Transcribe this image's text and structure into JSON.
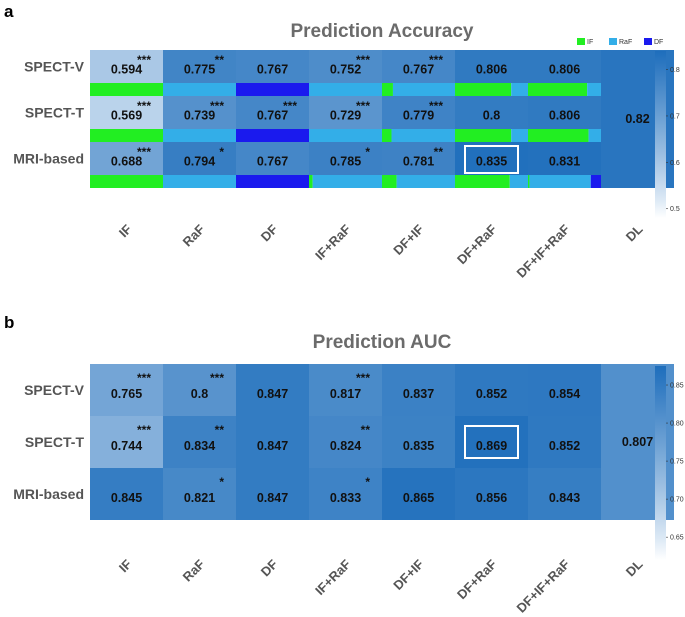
{
  "chart_data": [
    {
      "panel": "a",
      "type": "heatmap",
      "title": "Prediction Accuracy",
      "rows": [
        "SPECT-V",
        "SPECT-T",
        "MRI-based"
      ],
      "columns": [
        "IF",
        "RaF",
        "DF",
        "IF+RaF",
        "DF+IF",
        "DF+RaF",
        "DF+IF+RaF",
        "DL"
      ],
      "values": [
        [
          "0.594",
          "0.775",
          "0.767",
          "0.752",
          "0.767",
          "0.806",
          "0.806",
          "0.82"
        ],
        [
          "0.569",
          "0.739",
          "0.767",
          "0.729",
          "0.779",
          "0.8",
          "0.806",
          "0.82"
        ],
        [
          "0.688",
          "0.794",
          "0.767",
          "0.785",
          "0.781",
          "0.835",
          "0.831",
          "0.82"
        ]
      ],
      "significance": [
        [
          "***",
          "**",
          "",
          "***",
          "***",
          "",
          "",
          ""
        ],
        [
          "***",
          "***",
          "***",
          "***",
          "***",
          "",
          "",
          ""
        ],
        [
          "***",
          "*",
          "",
          "*",
          "**",
          "",
          "",
          ""
        ]
      ],
      "merged_column": "DL",
      "highlight": {
        "row": 2,
        "col": 5
      },
      "colorbar": {
        "min": 0.48,
        "max": 0.84,
        "ticks": [
          "0.5",
          "0.6",
          "0.7",
          "0.8"
        ]
      },
      "feature_legend": [
        {
          "label": "IF",
          "color": "#22ee22"
        },
        {
          "label": "RaF",
          "color": "#33aee8"
        },
        {
          "label": "DF",
          "color": "#1a1aee"
        }
      ],
      "feature_bars": [
        [
          [
            1
          ],
          [
            0,
            1
          ],
          [
            0,
            0,
            1
          ],
          [
            0,
            1
          ],
          [
            0.15,
            0.85
          ],
          [
            0.77,
            0.23
          ],
          [
            0.81,
            0.19
          ]
        ],
        [
          [
            1
          ],
          [
            0,
            1
          ],
          [
            0,
            0,
            1
          ],
          [
            0,
            1
          ],
          [
            0.13,
            0.87
          ],
          [
            0.77,
            0.23
          ],
          [
            0.83,
            0.17
          ]
        ],
        [
          [
            1
          ],
          [
            0,
            1
          ],
          [
            0,
            0,
            1
          ],
          [
            0.05,
            0.95
          ],
          [
            0.2,
            0.8
          ],
          [
            0.75,
            0.25
          ],
          [
            0.02,
            0.84,
            0.14
          ]
        ]
      ]
    },
    {
      "panel": "b",
      "type": "heatmap",
      "title": "Prediction AUC",
      "rows": [
        "SPECT-V",
        "SPECT-T",
        "MRI-based"
      ],
      "columns": [
        "IF",
        "RaF",
        "DF",
        "IF+RaF",
        "DF+IF",
        "DF+RaF",
        "DF+IF+RaF",
        "DL"
      ],
      "values": [
        [
          "0.765",
          "0.8",
          "0.847",
          "0.817",
          "0.837",
          "0.852",
          "0.854",
          "0.807"
        ],
        [
          "0.744",
          "0.834",
          "0.847",
          "0.824",
          "0.835",
          "0.869",
          "0.852",
          "0.807"
        ],
        [
          "0.845",
          "0.821",
          "0.847",
          "0.833",
          "0.865",
          "0.856",
          "0.843",
          "0.807"
        ]
      ],
      "significance": [
        [
          "***",
          "***",
          "",
          "***",
          "",
          "",
          "",
          ""
        ],
        [
          "***",
          "**",
          "",
          "**",
          "",
          "",
          "",
          ""
        ],
        [
          "",
          "*",
          "",
          "*",
          "",
          "",
          "",
          ""
        ]
      ],
      "merged_column": "DL",
      "highlight": {
        "row": 1,
        "col": 5
      },
      "colorbar": {
        "min": 0.62,
        "max": 0.875,
        "ticks": [
          "0.65",
          "0.70",
          "0.75",
          "0.80",
          "0.85"
        ]
      }
    }
  ]
}
